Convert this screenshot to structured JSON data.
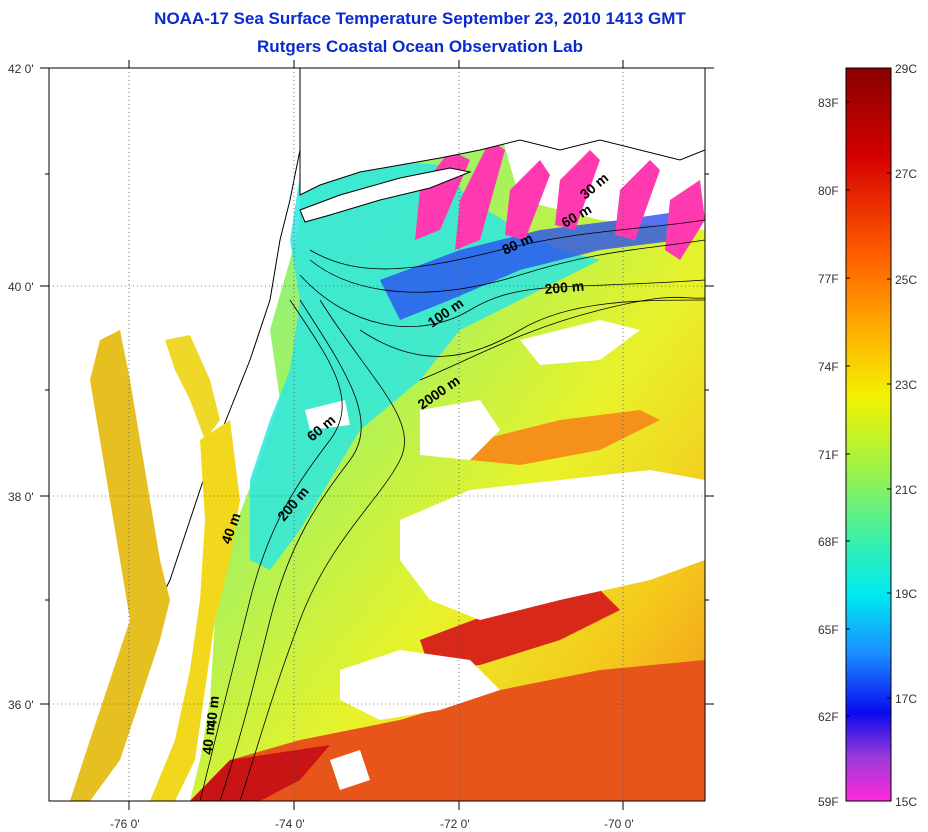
{
  "title_line1": "NOAA-17 Sea Surface Temperature September 23, 2010 1413 GMT",
  "title_line2": "Rutgers Coastal Ocean Observation Lab",
  "lat_labels": [
    "42 0'",
    "40 0'",
    "38 0'",
    "36 0'"
  ],
  "lon_labels": [
    "-76 0'",
    "-74 0'",
    "-72 0'",
    "-70 0'"
  ],
  "depth_labels": [
    "30 m",
    "60 m",
    "80 m",
    "200 m",
    "100 m",
    "2000 m",
    "60 m",
    "200 m",
    "40 m",
    "40 m",
    "40 m"
  ],
  "colorbar": {
    "fahrenheit": [
      "83F",
      "80F",
      "77F",
      "74F",
      "71F",
      "68F",
      "65F",
      "62F",
      "59F"
    ],
    "celsius": [
      "29C",
      "27C",
      "25C",
      "23C",
      "21C",
      "19C",
      "17C",
      "15C"
    ]
  },
  "colors": {
    "title": "#0a2ad0",
    "land": "#ffffff",
    "cloud": "#ffffff"
  }
}
